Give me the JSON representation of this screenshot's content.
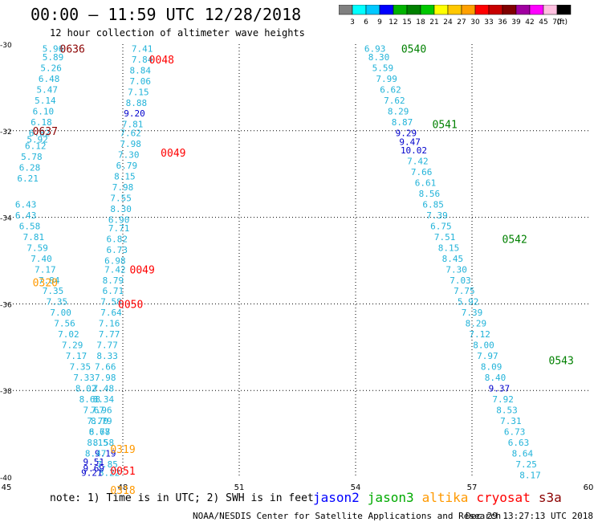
{
  "header": {
    "title": "00:00 – 11:59 UTC 12/28/2018",
    "subtitle": "12 hour collection of altimeter wave heights"
  },
  "colorbar": {
    "unit": "(ft)",
    "ticks": [
      "3",
      "6",
      "9",
      "12",
      "15",
      "18",
      "21",
      "24",
      "27",
      "30",
      "33",
      "36",
      "39",
      "42",
      "45",
      "70"
    ],
    "colors": [
      "#808080",
      "#00ffff",
      "#00c8ff",
      "#0000ff",
      "#00b400",
      "#008000",
      "#00c800",
      "#ffff00",
      "#ffc800",
      "#ffa000",
      "#ff0000",
      "#c80000",
      "#800000",
      "#a000a0",
      "#ff00ff",
      "#ffc0e0",
      "#000000"
    ]
  },
  "chart_data": {
    "type": "scatter",
    "xlim": [
      45,
      60
    ],
    "ylim": [
      -40,
      -30
    ],
    "x_ticks": [
      "45",
      "48",
      "51",
      "54",
      "57",
      "60"
    ],
    "y_ticks": [
      "-30",
      "-32",
      "-34",
      "-36",
      "-38",
      "-40"
    ],
    "grid": true,
    "series": [
      {
        "name": "track-west",
        "color": "#22b3d9",
        "points": [
          {
            "x": 46.2,
            "y": -30.1,
            "v": "5.96"
          },
          {
            "x": 46.2,
            "y": -30.3,
            "v": "5.89"
          },
          {
            "x": 46.15,
            "y": -30.55,
            "v": "5.26"
          },
          {
            "x": 46.1,
            "y": -30.8,
            "v": "6.48"
          },
          {
            "x": 46.05,
            "y": -31.05,
            "v": "5.47"
          },
          {
            "x": 46.0,
            "y": -31.3,
            "v": "5.14"
          },
          {
            "x": 45.95,
            "y": -31.55,
            "v": "6.10"
          },
          {
            "x": 45.9,
            "y": -31.8,
            "v": "6.18"
          },
          {
            "x": 45.85,
            "y": -32.05,
            "v": "6.82"
          },
          {
            "x": 45.8,
            "y": -32.2,
            "v": "5.92"
          },
          {
            "x": 45.75,
            "y": -32.35,
            "v": "6.12"
          },
          {
            "x": 45.65,
            "y": -32.6,
            "v": "5.78"
          },
          {
            "x": 45.6,
            "y": -32.85,
            "v": "6.28"
          },
          {
            "x": 45.55,
            "y": -33.1,
            "v": "6.21"
          },
          {
            "x": 45.5,
            "y": -33.7,
            "v": "6.43"
          },
          {
            "x": 45.5,
            "y": -33.95,
            "v": "6.43"
          },
          {
            "x": 45.6,
            "y": -34.2,
            "v": "6.58"
          },
          {
            "x": 45.7,
            "y": -34.45,
            "v": "7.81"
          },
          {
            "x": 45.8,
            "y": -34.7,
            "v": "7.59"
          },
          {
            "x": 45.9,
            "y": -34.95,
            "v": "7.40"
          },
          {
            "x": 46.0,
            "y": -35.2,
            "v": "7.17"
          },
          {
            "x": 46.1,
            "y": -35.45,
            "v": "7.84"
          },
          {
            "x": 46.2,
            "y": -35.7,
            "v": "7.35"
          },
          {
            "x": 46.3,
            "y": -35.95,
            "v": "7.35"
          },
          {
            "x": 46.4,
            "y": -36.2,
            "v": "7.00"
          },
          {
            "x": 46.5,
            "y": -36.45,
            "v": "7.56"
          },
          {
            "x": 46.6,
            "y": -36.7,
            "v": "7.02"
          },
          {
            "x": 46.7,
            "y": -36.95,
            "v": "7.29"
          },
          {
            "x": 46.8,
            "y": -37.2,
            "v": "7.17"
          },
          {
            "x": 46.9,
            "y": -37.45,
            "v": "7.35"
          },
          {
            "x": 47.0,
            "y": -37.7,
            "v": "7.33"
          },
          {
            "x": 47.05,
            "y": -37.95,
            "v": "8.02"
          },
          {
            "x": 47.15,
            "y": -38.2,
            "v": "8.68"
          },
          {
            "x": 47.25,
            "y": -38.45,
            "v": "7.67"
          },
          {
            "x": 47.35,
            "y": -38.7,
            "v": "7.70"
          },
          {
            "x": 47.4,
            "y": -38.95,
            "v": "6.77"
          },
          {
            "x": 47.5,
            "y": -39.2,
            "v": "8.58"
          },
          {
            "x": 47.55,
            "y": -39.45,
            "v": "9.19"
          },
          {
            "x": 47.6,
            "y": -39.7,
            "v": "7.85"
          },
          {
            "x": 47.65,
            "y": -39.9,
            "v": "8.22"
          }
        ]
      },
      {
        "name": "track-center",
        "color": "#22b3d9",
        "points": [
          {
            "x": 48.5,
            "y": -30.1,
            "v": "7.41"
          },
          {
            "x": 48.5,
            "y": -30.35,
            "v": "7.84"
          },
          {
            "x": 48.45,
            "y": -30.6,
            "v": "8.84"
          },
          {
            "x": 48.45,
            "y": -30.85,
            "v": "7.06"
          },
          {
            "x": 48.4,
            "y": -31.1,
            "v": "7.15"
          },
          {
            "x": 48.35,
            "y": -31.35,
            "v": "8.88"
          },
          {
            "x": 48.3,
            "y": -31.6,
            "v": "9.20"
          },
          {
            "x": 48.25,
            "y": -31.85,
            "v": "7.81"
          },
          {
            "x": 48.2,
            "y": -32.05,
            "v": "7.62"
          },
          {
            "x": 48.2,
            "y": -32.3,
            "v": "7.98"
          },
          {
            "x": 48.15,
            "y": -32.55,
            "v": "7.30"
          },
          {
            "x": 48.1,
            "y": -32.8,
            "v": "6.79"
          },
          {
            "x": 48.05,
            "y": -33.05,
            "v": "8.15"
          },
          {
            "x": 48.0,
            "y": -33.3,
            "v": "7.98"
          },
          {
            "x": 47.95,
            "y": -33.55,
            "v": "7.55"
          },
          {
            "x": 47.95,
            "y": -33.8,
            "v": "8.30"
          },
          {
            "x": 47.9,
            "y": -34.05,
            "v": "6.90"
          },
          {
            "x": 47.9,
            "y": -34.25,
            "v": "7.71"
          },
          {
            "x": 47.85,
            "y": -34.5,
            "v": "6.82"
          },
          {
            "x": 47.85,
            "y": -34.75,
            "v": "6.73"
          },
          {
            "x": 47.8,
            "y": -35.0,
            "v": "6.98"
          },
          {
            "x": 47.8,
            "y": -35.2,
            "v": "7.42"
          },
          {
            "x": 47.75,
            "y": -35.45,
            "v": "8.79"
          },
          {
            "x": 47.75,
            "y": -35.7,
            "v": "6.71"
          },
          {
            "x": 47.7,
            "y": -35.95,
            "v": "7.58"
          },
          {
            "x": 47.7,
            "y": -36.2,
            "v": "7.64"
          },
          {
            "x": 47.65,
            "y": -36.45,
            "v": "7.16"
          },
          {
            "x": 47.65,
            "y": -36.7,
            "v": "7.77"
          },
          {
            "x": 47.6,
            "y": -36.95,
            "v": "7.77"
          },
          {
            "x": 47.6,
            "y": -37.2,
            "v": "8.33"
          },
          {
            "x": 47.55,
            "y": -37.45,
            "v": "7.66"
          },
          {
            "x": 47.55,
            "y": -37.7,
            "v": "7.98"
          },
          {
            "x": 47.5,
            "y": -37.95,
            "v": "7.48"
          },
          {
            "x": 47.5,
            "y": -38.2,
            "v": "8.34"
          },
          {
            "x": 47.45,
            "y": -38.45,
            "v": "7.96"
          },
          {
            "x": 47.45,
            "y": -38.7,
            "v": "8.79"
          },
          {
            "x": 47.4,
            "y": -38.95,
            "v": "8.68"
          },
          {
            "x": 47.35,
            "y": -39.2,
            "v": "8.15"
          },
          {
            "x": 47.3,
            "y": -39.45,
            "v": "8.47"
          },
          {
            "x": 47.25,
            "y": -39.65,
            "v": "9.51"
          },
          {
            "x": 47.25,
            "y": -39.8,
            "v": "9.69"
          },
          {
            "x": 47.2,
            "y": -39.9,
            "v": "9.21"
          }
        ]
      },
      {
        "name": "track-east",
        "color": "#22b3d9",
        "points": [
          {
            "x": 54.5,
            "y": -30.1,
            "v": "6.93"
          },
          {
            "x": 54.6,
            "y": -30.3,
            "v": "8.30"
          },
          {
            "x": 54.7,
            "y": -30.55,
            "v": "5.59"
          },
          {
            "x": 54.8,
            "y": -30.8,
            "v": "7.99"
          },
          {
            "x": 54.9,
            "y": -31.05,
            "v": "6.62"
          },
          {
            "x": 55.0,
            "y": -31.3,
            "v": "7.62"
          },
          {
            "x": 55.1,
            "y": -31.55,
            "v": "8.29"
          },
          {
            "x": 55.2,
            "y": -31.8,
            "v": "8.87"
          },
          {
            "x": 55.3,
            "y": -32.05,
            "v": "9.29"
          },
          {
            "x": 55.4,
            "y": -32.25,
            "v": "9.47"
          },
          {
            "x": 55.5,
            "y": -32.45,
            "v": "10.02"
          },
          {
            "x": 55.6,
            "y": -32.7,
            "v": "7.42"
          },
          {
            "x": 55.7,
            "y": -32.95,
            "v": "7.66"
          },
          {
            "x": 55.8,
            "y": -33.2,
            "v": "6.61"
          },
          {
            "x": 55.9,
            "y": -33.45,
            "v": "8.56"
          },
          {
            "x": 56.0,
            "y": -33.7,
            "v": "6.85"
          },
          {
            "x": 56.1,
            "y": -33.95,
            "v": "7.39"
          },
          {
            "x": 56.2,
            "y": -34.2,
            "v": "6.75"
          },
          {
            "x": 56.3,
            "y": -34.45,
            "v": "7.51"
          },
          {
            "x": 56.4,
            "y": -34.7,
            "v": "8.15"
          },
          {
            "x": 56.5,
            "y": -34.95,
            "v": "8.45"
          },
          {
            "x": 56.6,
            "y": -35.2,
            "v": "7.30"
          },
          {
            "x": 56.7,
            "y": -35.45,
            "v": "7.03"
          },
          {
            "x": 56.8,
            "y": -35.7,
            "v": "7.75"
          },
          {
            "x": 56.9,
            "y": -35.95,
            "v": "5.92"
          },
          {
            "x": 57.0,
            "y": -36.2,
            "v": "7.39"
          },
          {
            "x": 57.1,
            "y": -36.45,
            "v": "8.29"
          },
          {
            "x": 57.2,
            "y": -36.7,
            "v": "7.12"
          },
          {
            "x": 57.3,
            "y": -36.95,
            "v": "8.00"
          },
          {
            "x": 57.4,
            "y": -37.2,
            "v": "7.97"
          },
          {
            "x": 57.5,
            "y": -37.45,
            "v": "8.09"
          },
          {
            "x": 57.6,
            "y": -37.7,
            "v": "8.40"
          },
          {
            "x": 57.7,
            "y": -37.95,
            "v": "9.37"
          },
          {
            "x": 57.8,
            "y": -38.2,
            "v": "7.92"
          },
          {
            "x": 57.9,
            "y": -38.45,
            "v": "8.53"
          },
          {
            "x": 58.0,
            "y": -38.7,
            "v": "7.31"
          },
          {
            "x": 58.1,
            "y": -38.95,
            "v": "6.73"
          },
          {
            "x": 58.2,
            "y": -39.2,
            "v": "6.63"
          },
          {
            "x": 58.3,
            "y": -39.45,
            "v": "8.64"
          },
          {
            "x": 58.4,
            "y": -39.7,
            "v": "7.25"
          },
          {
            "x": 58.5,
            "y": -39.95,
            "v": "8.17"
          }
        ]
      }
    ],
    "time_labels": [
      {
        "text": "0636",
        "x": 46.7,
        "y": -30.1,
        "color": "#8b0000"
      },
      {
        "text": "0637",
        "x": 46.0,
        "y": -32.0,
        "color": "#8b0000"
      },
      {
        "text": "0048",
        "x": 49.0,
        "y": -30.35,
        "color": "#ff0000"
      },
      {
        "text": "0049",
        "x": 49.3,
        "y": -32.5,
        "color": "#ff0000"
      },
      {
        "text": "0049",
        "x": 48.5,
        "y": -35.2,
        "color": "#ff0000"
      },
      {
        "text": "0050",
        "x": 48.2,
        "y": -36.0,
        "color": "#ff0000"
      },
      {
        "text": "0051",
        "x": 48.0,
        "y": -39.85,
        "color": "#ff0000"
      },
      {
        "text": "0320",
        "x": 46.0,
        "y": -35.5,
        "color": "#ff9900"
      },
      {
        "text": "0319",
        "x": 48.0,
        "y": -39.35,
        "color": "#ff9900"
      },
      {
        "text": "0318",
        "x": 48.0,
        "y": -40.3,
        "color": "#ff9900"
      },
      {
        "text": "0540",
        "x": 55.5,
        "y": -30.1,
        "color": "#008000"
      },
      {
        "text": "0541",
        "x": 56.3,
        "y": -31.85,
        "color": "#008000"
      },
      {
        "text": "0542",
        "x": 58.1,
        "y": -34.5,
        "color": "#008000"
      },
      {
        "text": "0543",
        "x": 59.3,
        "y": -37.3,
        "color": "#008000"
      }
    ],
    "legend": [
      {
        "label": "jason2",
        "color": "#0000ff"
      },
      {
        "label": "jason3",
        "color": "#00aa00"
      },
      {
        "label": "altika",
        "color": "#ff9900"
      },
      {
        "label": "cryosat",
        "color": "#ff0000"
      },
      {
        "label": "s3a",
        "color": "#8b0000"
      }
    ]
  },
  "footer": {
    "note": "note: 1) Time is in UTC; 2) SWH is in feet",
    "credit": "NOAA/NESDIS Center for Satellite Applications and Research",
    "timestamp": "Dec 29 13:27:13 UTC 2018"
  }
}
